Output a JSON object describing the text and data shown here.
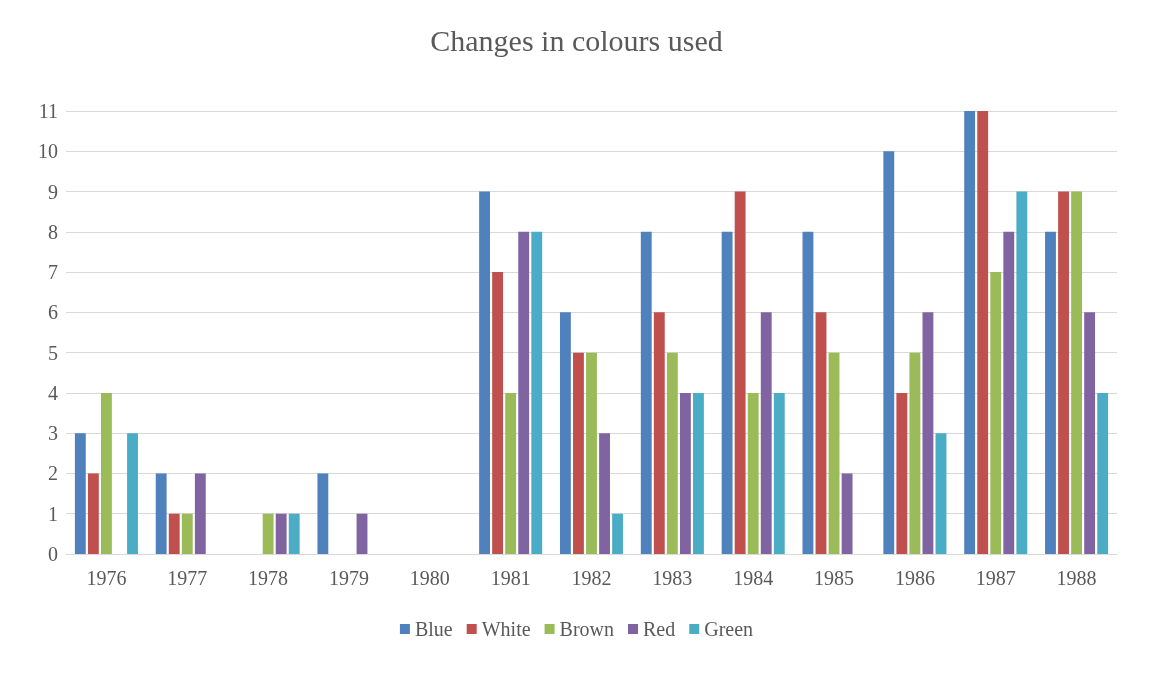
{
  "chart_data": {
    "type": "bar",
    "title": "Changes in colours used",
    "categories": [
      "1976",
      "1977",
      "1978",
      "1979",
      "1980",
      "1981",
      "1982",
      "1983",
      "1984",
      "1985",
      "1986",
      "1987",
      "1988"
    ],
    "series": [
      {
        "name": "Blue",
        "color": "#4f81bd",
        "values": [
          3,
          2,
          0,
          2,
          0,
          9,
          6,
          8,
          8,
          8,
          10,
          11,
          8
        ]
      },
      {
        "name": "White",
        "color": "#c0504d",
        "values": [
          2,
          1,
          0,
          0,
          0,
          7,
          5,
          6,
          9,
          6,
          4,
          11,
          9
        ]
      },
      {
        "name": "Brown",
        "color": "#9bbb59",
        "values": [
          4,
          1,
          1,
          0,
          0,
          4,
          5,
          5,
          4,
          5,
          5,
          7,
          9
        ]
      },
      {
        "name": "Red",
        "color": "#8064a2",
        "values": [
          0,
          2,
          1,
          1,
          0,
          8,
          3,
          4,
          6,
          2,
          6,
          8,
          6
        ]
      },
      {
        "name": "Green",
        "color": "#4bacc6",
        "values": [
          3,
          0,
          1,
          0,
          0,
          8,
          1,
          4,
          4,
          0,
          3,
          9,
          4
        ]
      }
    ],
    "ylim": [
      0,
      11
    ],
    "yticks": [
      0,
      1,
      2,
      3,
      4,
      5,
      6,
      7,
      8,
      9,
      10,
      11
    ],
    "grid": "y",
    "legend": "bottom"
  }
}
